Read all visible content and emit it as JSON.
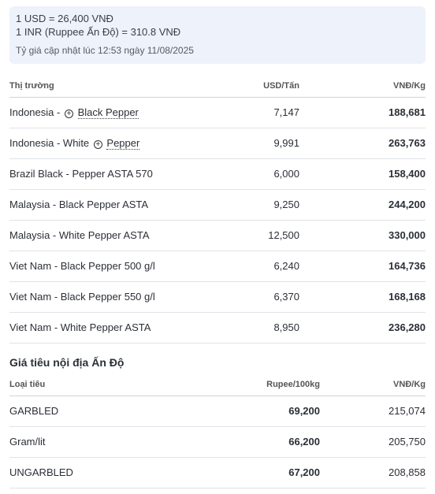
{
  "rates": {
    "usd": "1 USD = 26,400 VNĐ",
    "inr": "1 INR (Ruppee Ấn Độ) = 310.8 VNĐ",
    "updated": "Tỷ giá cập nhật lúc 12:53 ngày 11/08/2025"
  },
  "market_table": {
    "headers": [
      "Thị trường",
      "USD/Tấn",
      "VNĐ/Kg"
    ],
    "rows": [
      {
        "market_prefix": "Indonesia - ",
        "market_link": "Black Pepper",
        "usd": "7,147",
        "vnd": "188,681"
      },
      {
        "market_prefix": "Indonesia - White ",
        "market_link": "Pepper",
        "usd": "9,991",
        "vnd": "263,763"
      },
      {
        "market": "Brazil Black - Pepper ASTA 570",
        "usd": "6,000",
        "vnd": "158,400"
      },
      {
        "market": "Malaysia - Black Pepper ASTA",
        "usd": "9,250",
        "vnd": "244,200"
      },
      {
        "market": "Malaysia - White Pepper ASTA",
        "usd": "12,500",
        "vnd": "330,000"
      },
      {
        "market": "Viet Nam - Black Pepper 500 g/l",
        "usd": "6,240",
        "vnd": "164,736"
      },
      {
        "market": "Viet Nam - Black Pepper 550 g/l",
        "usd": "6,370",
        "vnd": "168,168"
      },
      {
        "market": "Viet Nam - White Pepper ASTA",
        "usd": "8,950",
        "vnd": "236,280"
      }
    ]
  },
  "india_section": {
    "title": "Giá tiêu nội địa Ấn Độ",
    "headers": [
      "Loại tiêu",
      "Rupee/100kg",
      "VNĐ/Kg"
    ],
    "rows": [
      {
        "type": "GARBLED",
        "rupee": "69,200",
        "vnd": "215,074"
      },
      {
        "type": "Gram/lit",
        "rupee": "66,200",
        "vnd": "205,750"
      },
      {
        "type": "UNGARBLED",
        "rupee": "67,200",
        "vnd": "208,858"
      }
    ]
  }
}
